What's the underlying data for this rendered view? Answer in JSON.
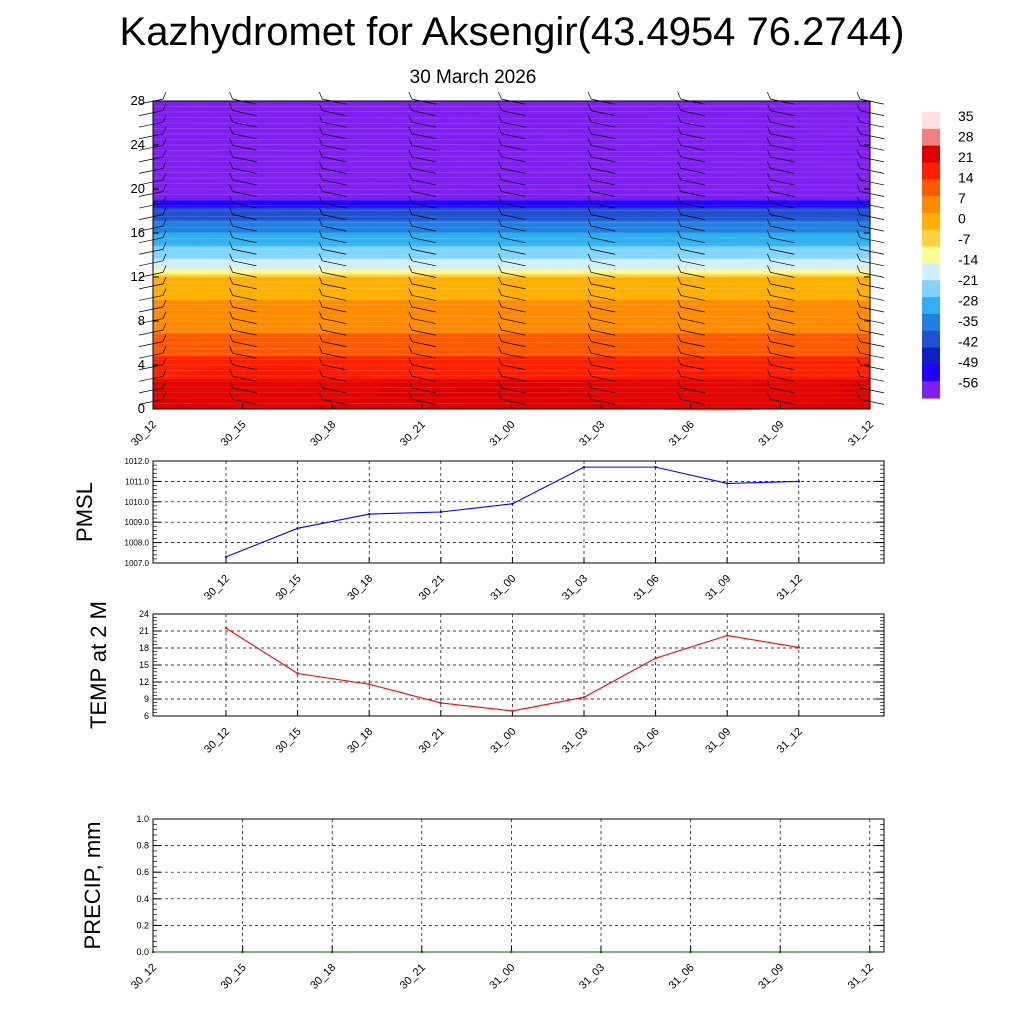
{
  "header": {
    "title": "Kazhydromet for Aksengir(43.4954 76.2744)",
    "subtitle": "30 March 2026"
  },
  "colors": {
    "pmsl_line": "#0000ff",
    "temp_line": "#ff0000",
    "precip_line": "#006400",
    "colorbar": [
      "#ffe0e0",
      "#f08080",
      "#dd0000",
      "#ff2000",
      "#ff5a00",
      "#ff8c00",
      "#ffb000",
      "#ffd040",
      "#ffff90",
      "#d0f0ff",
      "#80d4ff",
      "#30b0f0",
      "#2080e0",
      "#2050d0",
      "#1020c0",
      "#2000ff",
      "#8020f0"
    ]
  },
  "chart_data": [
    {
      "id": "cross_section",
      "type": "heatmap",
      "title": "",
      "categories": [
        "30_12",
        "30_15",
        "30_18",
        "30_21",
        "31_00",
        "31_03",
        "31_06",
        "31_09",
        "31_12"
      ],
      "ylim": [
        0,
        28
      ],
      "yticks": [
        0,
        4,
        8,
        12,
        16,
        20,
        24,
        28
      ],
      "colorbar_labels": [
        "35",
        "28",
        "21",
        "14",
        "7",
        "0",
        "-7",
        "-14",
        "-21",
        "-28",
        "-35",
        "-42",
        "-49",
        "-56"
      ],
      "temperature_profile": [
        {
          "h": 0,
          "t": 21
        },
        {
          "h": 2,
          "t": 20
        },
        {
          "h": 4,
          "t": 15
        },
        {
          "h": 6,
          "t": 10
        },
        {
          "h": 8,
          "t": 6
        },
        {
          "h": 10,
          "t": 2
        },
        {
          "h": 12,
          "t": -3
        },
        {
          "h": 12.5,
          "t": -14
        },
        {
          "h": 14,
          "t": -25
        },
        {
          "h": 16,
          "t": -38
        },
        {
          "h": 18,
          "t": -52
        },
        {
          "h": 19,
          "t": -60
        },
        {
          "h": 28,
          "t": -60
        }
      ]
    },
    {
      "id": "pmsl",
      "type": "line",
      "ylabel": "PMSL",
      "categories": [
        "30_12",
        "30_15",
        "30_18",
        "30_21",
        "31_00",
        "31_03",
        "31_06",
        "31_09",
        "31_12"
      ],
      "values": [
        1007.3,
        1008.7,
        1009.4,
        1009.5,
        1009.9,
        1011.7,
        1011.7,
        1010.9,
        1011.0
      ],
      "ylim": [
        1007.0,
        1012.0
      ],
      "yticks": [
        "1007.0",
        "1008.0",
        "1009.0",
        "1010.0",
        "1011.0",
        "1012.0"
      ]
    },
    {
      "id": "temp",
      "type": "line",
      "ylabel": "TEMP at 2 M",
      "categories": [
        "30_12",
        "30_15",
        "30_18",
        "30_21",
        "31_00",
        "31_03",
        "31_06",
        "31_09",
        "31_12"
      ],
      "values": [
        21.5,
        13.5,
        11.6,
        8.3,
        6.9,
        9.3,
        16.2,
        20.2,
        18.1
      ],
      "ylim": [
        6,
        24
      ],
      "yticks": [
        "6",
        "9",
        "12",
        "15",
        "18",
        "21",
        "24"
      ]
    },
    {
      "id": "precip",
      "type": "line",
      "ylabel": "PRECIP, mm",
      "categories": [
        "30_12",
        "30_15",
        "30_18",
        "30_21",
        "31_00",
        "31_03",
        "31_06",
        "31_09",
        "31_12"
      ],
      "values": [
        0,
        0,
        0,
        0,
        0,
        0,
        0,
        0,
        0
      ],
      "ylim": [
        0.0,
        1.0
      ],
      "yticks": [
        "0.0",
        "0.2",
        "0.4",
        "0.6",
        "0.8",
        "1.0"
      ]
    }
  ]
}
